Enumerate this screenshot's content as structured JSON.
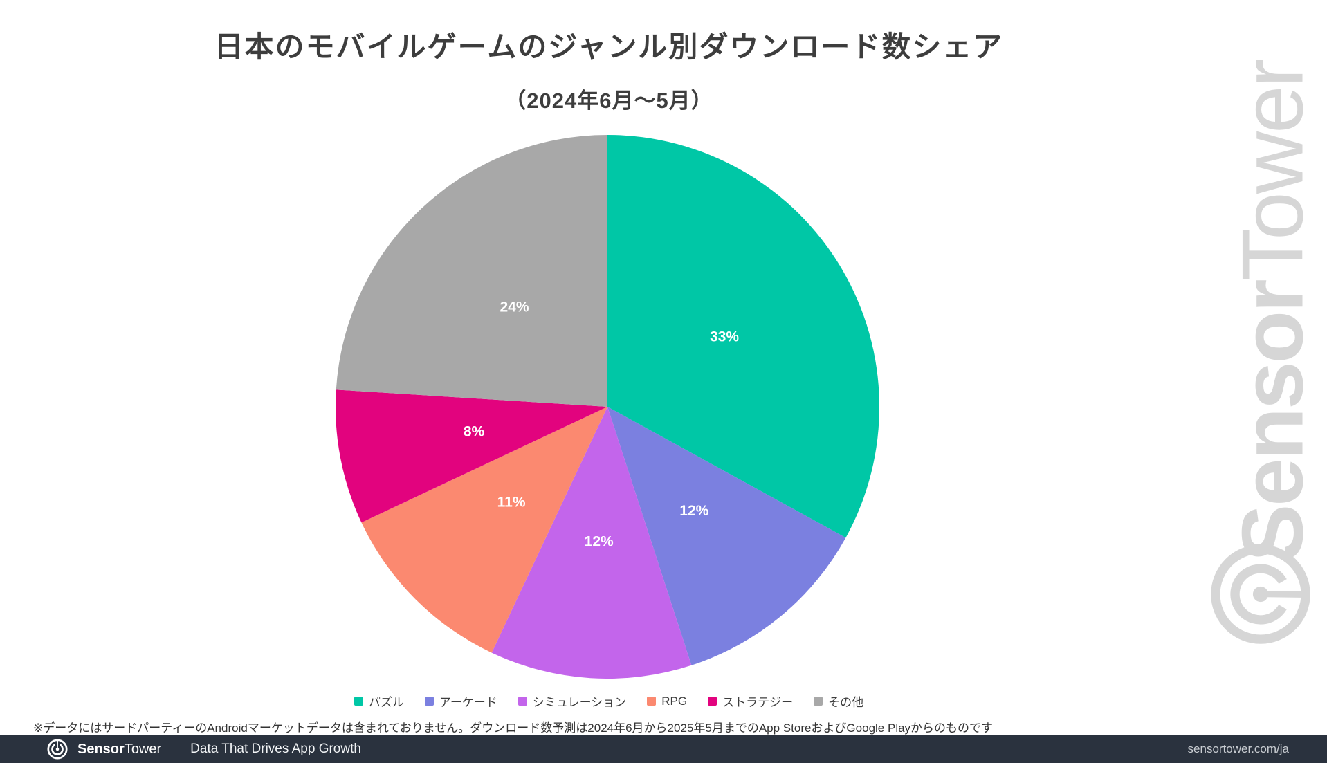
{
  "page": {
    "background": "#ffffff",
    "footnote": "※データにはサードパーティーのAndroidマーケットデータは含まれておりません。ダウンロード数予測は2024年6月から2025年5月までのApp StoreおよびGoogle Playからのものです"
  },
  "chart_data": {
    "type": "pie",
    "title": "日本のモバイルゲームのジャンル別ダウンロード数シェア",
    "subtitle": "（2024年6月～5月）",
    "start_angle_deg": 0,
    "direction": "clockwise",
    "label_radius_ratio": 0.5,
    "label_color": "#ffffff",
    "legend_position": "bottom",
    "slices": [
      {
        "label": "パズル",
        "value": 33,
        "display": "33%",
        "color": "#00C7A6"
      },
      {
        "label": "アーケード",
        "value": 12,
        "display": "12%",
        "color": "#7B80E0"
      },
      {
        "label": "シミュレーション",
        "value": 12,
        "display": "12%",
        "color": "#C365EB"
      },
      {
        "label": "RPG",
        "value": 11,
        "display": "11%",
        "color": "#FB8970"
      },
      {
        "label": "ストラテジー",
        "value": 8,
        "display": "8%",
        "color": "#E2037E"
      },
      {
        "label": "その他",
        "value": 24,
        "display": "24%",
        "color": "#A8A8A8"
      }
    ]
  },
  "watermark": {
    "brand_bold": "Sensor",
    "brand_regular": "Tower",
    "color": "#d6d6d6"
  },
  "footer": {
    "brand_bold": "Sensor",
    "brand_regular": "Tower",
    "tagline": "Data That Drives App Growth",
    "url": "sensortower.com/ja",
    "background": "#2a323e",
    "text_color": "#ffffff"
  }
}
